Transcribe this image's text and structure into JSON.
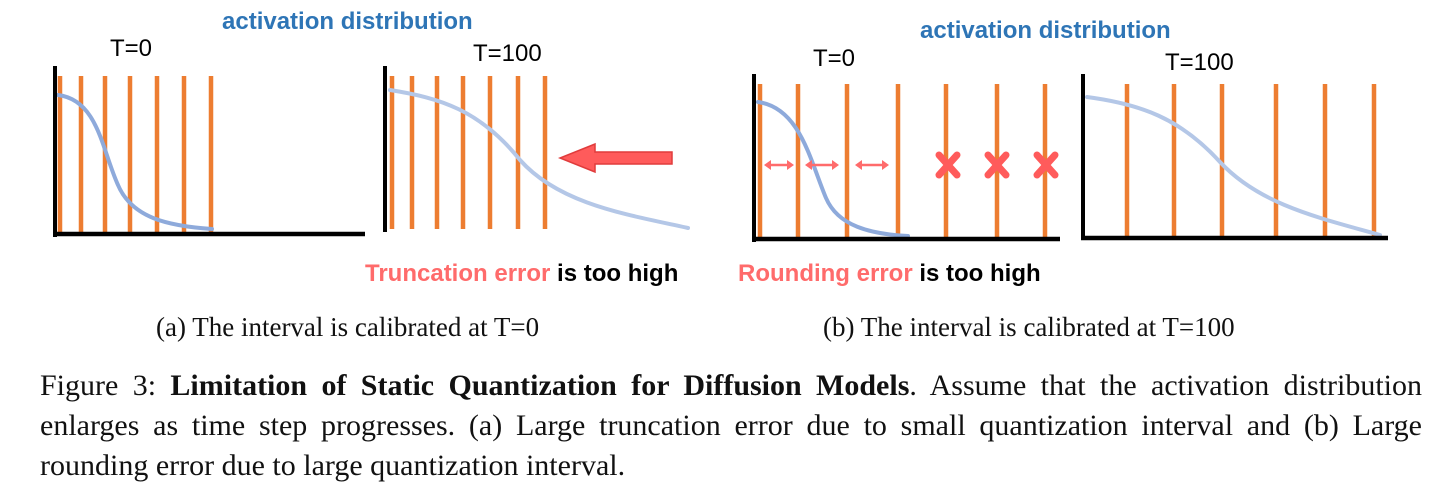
{
  "panel_a": {
    "heading": "activation distribution",
    "left_label": "T=0",
    "right_label": "T=100",
    "error_highlight": "Truncation error",
    "error_rest": " is too high",
    "subcaption": "(a) The interval is calibrated at T=0"
  },
  "panel_b": {
    "heading": "activation distribution",
    "left_label": "T=0",
    "right_label": "T=100",
    "error_highlight": "Rounding error",
    "error_rest": " is too high",
    "subcaption": "(b) The interval is calibrated at T=100"
  },
  "caption": {
    "prefix": "Figure 3: ",
    "title": "Limitation of Static Quantization for Diffusion Models",
    "body": ". Assume that the activation distribution enlarges as time step progresses. (a) Large truncation error due to small quantization interval and (b) Large rounding error due to large quantization interval."
  },
  "colors": {
    "heading": "#2e75b6",
    "bars": "#ed7d31",
    "curve": "#8eaadb",
    "curve_light": "#b4c7e7",
    "error_text": "#ff6b6b",
    "arrow": "#ff5b5b",
    "axis": "#000000"
  }
}
